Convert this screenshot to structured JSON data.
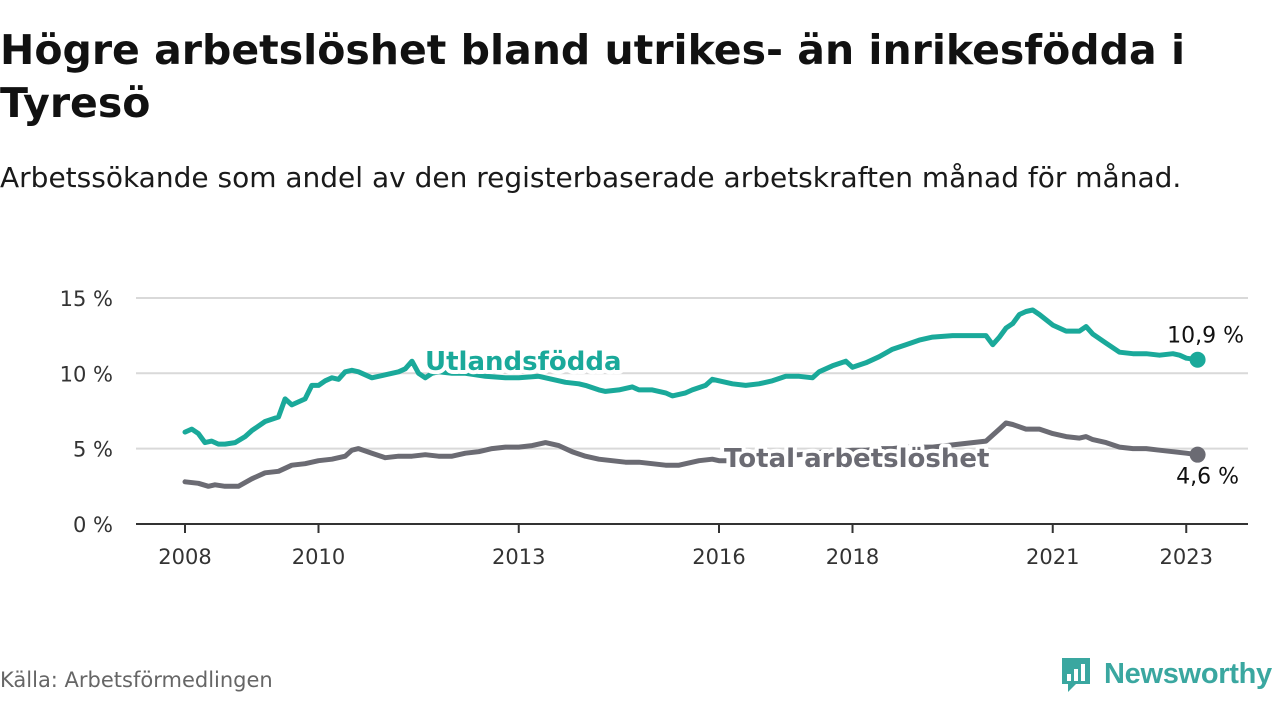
{
  "header": {
    "title": "Högre arbetslöshet bland utrikes- än inrikesfödda i Tyresö",
    "subtitle": "Arbetssökande som andel av den registerbaserade arbetskraften månad för månad."
  },
  "footer": {
    "source": "Källa: Arbetsförmedlingen",
    "brand": "Newsworthy"
  },
  "colors": {
    "foreign_born": "#1aa99a",
    "total": "#6b6b73",
    "grid": "#d9d9d9",
    "axis": "#333333",
    "brand": "#3aa7a0"
  },
  "chart_data": {
    "type": "line",
    "title": "Högre arbetslöshet bland utrikes- än inrikesfödda i Tyresö",
    "xlabel": "",
    "ylabel": "",
    "xlim": [
      2008,
      2023.5
    ],
    "ylim": [
      0,
      15
    ],
    "grid": true,
    "x_ticks": [
      {
        "value": 2008.0,
        "label": "2008"
      },
      {
        "value": 2010.0,
        "label": "2010"
      },
      {
        "value": 2013.0,
        "label": "2013"
      },
      {
        "value": 2016.0,
        "label": "2016"
      },
      {
        "value": 2018.0,
        "label": "2018"
      },
      {
        "value": 2021.0,
        "label": "2021"
      },
      {
        "value": 2023.0,
        "label": "2023"
      }
    ],
    "y_ticks": [
      {
        "value": 0,
        "label": "0 %"
      },
      {
        "value": 5,
        "label": "5 %"
      },
      {
        "value": 10,
        "label": "10 %"
      },
      {
        "value": 15,
        "label": "15 %"
      }
    ],
    "series": [
      {
        "name": "Utlandsfödda",
        "label": "Utlandsfödda",
        "end_label": "10,9 %",
        "x": [
          2008.0,
          2008.1,
          2008.2,
          2008.3,
          2008.4,
          2008.5,
          2008.6,
          2008.75,
          2008.9,
          2009.0,
          2009.2,
          2009.4,
          2009.5,
          2009.6,
          2009.8,
          2009.9,
          2010.0,
          2010.1,
          2010.2,
          2010.3,
          2010.4,
          2010.5,
          2010.6,
          2010.8,
          2011.0,
          2011.2,
          2011.3,
          2011.4,
          2011.5,
          2011.6,
          2011.7,
          2011.8,
          2012.0,
          2012.2,
          2012.5,
          2012.8,
          2013.0,
          2013.3,
          2013.5,
          2013.7,
          2013.9,
          2014.0,
          2014.2,
          2014.3,
          2014.5,
          2014.6,
          2014.7,
          2014.8,
          2015.0,
          2015.2,
          2015.3,
          2015.5,
          2015.6,
          2015.8,
          2015.9,
          2016.0,
          2016.1,
          2016.2,
          2016.4,
          2016.6,
          2016.8,
          2017.0,
          2017.2,
          2017.4,
          2017.5,
          2017.7,
          2017.9,
          2018.0,
          2018.2,
          2018.4,
          2018.6,
          2018.8,
          2019.0,
          2019.2,
          2019.5,
          2019.8,
          2020.0,
          2020.1,
          2020.2,
          2020.3,
          2020.4,
          2020.5,
          2020.6,
          2020.7,
          2020.8,
          2021.0,
          2021.2,
          2021.4,
          2021.5,
          2021.6,
          2021.8,
          2021.9,
          2022.0,
          2022.2,
          2022.4,
          2022.6,
          2022.8,
          2022.9,
          2023.0,
          2023.17
        ],
        "values": [
          6.1,
          6.3,
          6.0,
          5.4,
          5.5,
          5.3,
          5.3,
          5.4,
          5.8,
          6.2,
          6.8,
          7.1,
          8.3,
          7.9,
          8.3,
          9.2,
          9.2,
          9.5,
          9.7,
          9.6,
          10.1,
          10.2,
          10.1,
          9.7,
          9.9,
          10.1,
          10.3,
          10.8,
          10.0,
          9.7,
          10.0,
          10.1,
          10.0,
          10.0,
          9.8,
          9.7,
          9.7,
          9.8,
          9.6,
          9.4,
          9.3,
          9.2,
          8.9,
          8.8,
          8.9,
          9.0,
          9.1,
          8.9,
          8.9,
          8.7,
          8.5,
          8.7,
          8.9,
          9.2,
          9.6,
          9.5,
          9.4,
          9.3,
          9.2,
          9.3,
          9.5,
          9.8,
          9.8,
          9.7,
          10.1,
          10.5,
          10.8,
          10.4,
          10.7,
          11.1,
          11.6,
          11.9,
          12.2,
          12.4,
          12.5,
          12.5,
          12.5,
          11.9,
          12.4,
          13.0,
          13.3,
          13.9,
          14.1,
          14.2,
          13.9,
          13.2,
          12.8,
          12.8,
          13.1,
          12.6,
          12.0,
          11.7,
          11.4,
          11.3,
          11.3,
          11.2,
          11.3,
          11.2,
          11.0,
          10.9
        ]
      },
      {
        "name": "Total arbetslöshet",
        "label": "Total arbetslöshet",
        "end_label": "4,6 %",
        "x": [
          2008.0,
          2008.2,
          2008.35,
          2008.45,
          2008.6,
          2008.8,
          2009.0,
          2009.2,
          2009.4,
          2009.6,
          2009.8,
          2010.0,
          2010.2,
          2010.4,
          2010.5,
          2010.6,
          2010.8,
          2011.0,
          2011.2,
          2011.4,
          2011.6,
          2011.8,
          2012.0,
          2012.2,
          2012.4,
          2012.6,
          2012.8,
          2013.0,
          2013.2,
          2013.4,
          2013.6,
          2013.8,
          2014.0,
          2014.2,
          2014.4,
          2014.6,
          2014.8,
          2015.0,
          2015.2,
          2015.4,
          2015.5,
          2015.7,
          2015.9,
          2016.0,
          2016.2,
          2016.4,
          2016.6,
          2016.8,
          2017.0,
          2017.2,
          2017.4,
          2017.6,
          2017.8,
          2018.0,
          2018.2,
          2018.4,
          2018.6,
          2018.8,
          2019.0,
          2019.2,
          2019.4,
          2019.6,
          2019.8,
          2020.0,
          2020.1,
          2020.2,
          2020.3,
          2020.4,
          2020.6,
          2020.8,
          2021.0,
          2021.2,
          2021.4,
          2021.5,
          2021.6,
          2021.8,
          2022.0,
          2022.2,
          2022.4,
          2022.6,
          2022.8,
          2023.0,
          2023.17
        ],
        "values": [
          2.8,
          2.7,
          2.5,
          2.6,
          2.5,
          2.5,
          3.0,
          3.4,
          3.5,
          3.9,
          4.0,
          4.2,
          4.3,
          4.5,
          4.9,
          5.0,
          4.7,
          4.4,
          4.5,
          4.5,
          4.6,
          4.5,
          4.5,
          4.7,
          4.8,
          5.0,
          5.1,
          5.1,
          5.2,
          5.4,
          5.2,
          4.8,
          4.5,
          4.3,
          4.2,
          4.1,
          4.1,
          4.0,
          3.9,
          3.9,
          4.0,
          4.2,
          4.3,
          4.2,
          4.2,
          4.3,
          4.4,
          4.5,
          4.6,
          4.6,
          4.7,
          4.8,
          4.8,
          4.9,
          4.9,
          5.0,
          5.0,
          5.1,
          5.1,
          5.1,
          5.2,
          5.3,
          5.4,
          5.5,
          5.9,
          6.3,
          6.7,
          6.6,
          6.3,
          6.3,
          6.0,
          5.8,
          5.7,
          5.8,
          5.6,
          5.4,
          5.1,
          5.0,
          5.0,
          4.9,
          4.8,
          4.7,
          4.6
        ]
      }
    ]
  }
}
